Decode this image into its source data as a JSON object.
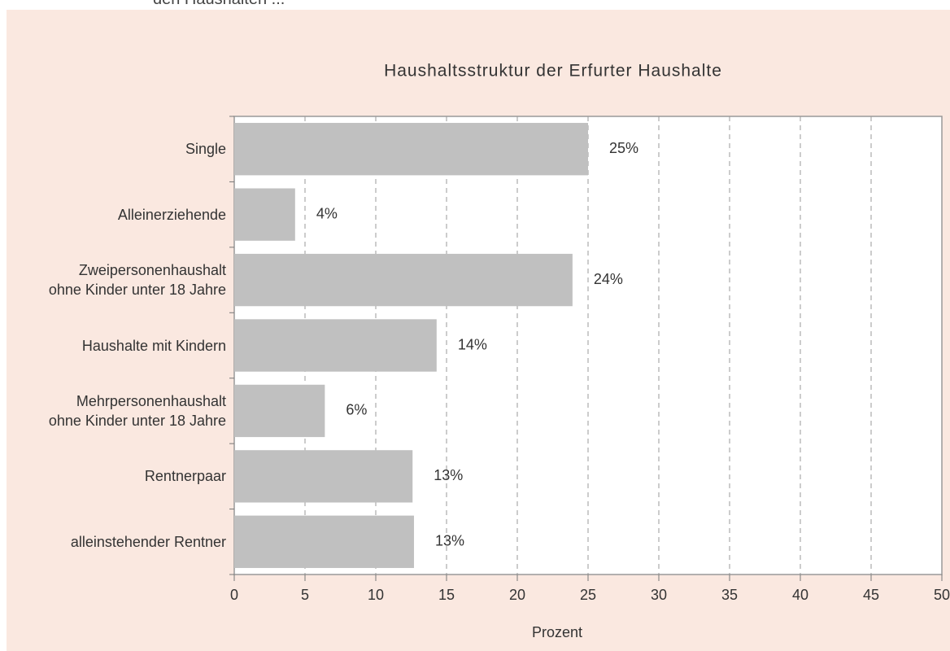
{
  "intro_text": "den Haushalten ...",
  "chart_data": {
    "type": "barh",
    "title": "Haushaltsstruktur der Erfurter Haushalte",
    "categories": [
      "Single",
      "Alleinerziehende",
      "Zweipersonenhaushalt\nohne Kinder unter 18 Jahre",
      "Haushalte mit Kindern",
      "Mehrpersonenhaushalt\nohne Kinder unter 18 Jahre",
      "Rentnerpaar",
      "alleinstehender Rentner"
    ],
    "values": [
      25,
      4.3,
      23.9,
      14.3,
      6.4,
      12.6,
      12.7
    ],
    "value_labels": [
      "25%",
      "4%",
      "24%",
      "14%",
      "6%",
      "13%",
      "13%"
    ],
    "color": "#c0c0c0",
    "label_color": "#2f7fc8",
    "xlabel": "Prozent",
    "xlim": [
      0,
      50
    ],
    "xticks": [
      0,
      5,
      10,
      15,
      20,
      25,
      30,
      35,
      40,
      45,
      50
    ],
    "grid": true
  }
}
